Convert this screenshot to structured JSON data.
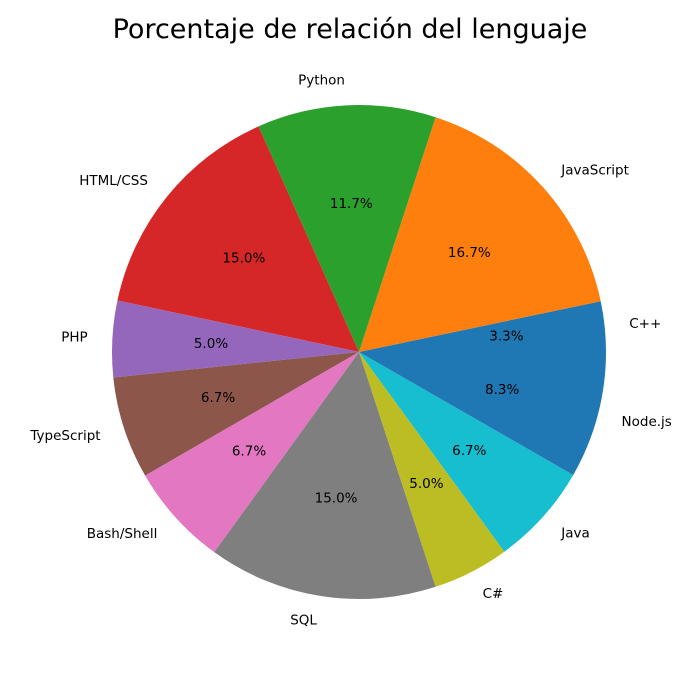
{
  "chart_data": {
    "type": "pie",
    "title": "Porcentaje de relación del lenguaje",
    "start_angle_deg": 0,
    "direction": "counterclockwise",
    "slices": [
      {
        "label": "C++",
        "value": 3.3,
        "pct_label": "3.3%",
        "color": "#1f77b4"
      },
      {
        "label": "JavaScript",
        "value": 16.7,
        "pct_label": "16.7%",
        "color": "#ff7f0e"
      },
      {
        "label": "Python",
        "value": 11.7,
        "pct_label": "11.7%",
        "color": "#2ca02c"
      },
      {
        "label": "HTML/CSS",
        "value": 15.0,
        "pct_label": "15.0%",
        "color": "#d62728"
      },
      {
        "label": "PHP",
        "value": 5.0,
        "pct_label": "5.0%",
        "color": "#9467bd"
      },
      {
        "label": "TypeScript",
        "value": 6.7,
        "pct_label": "6.7%",
        "color": "#8c564b"
      },
      {
        "label": "Bash/Shell",
        "value": 6.7,
        "pct_label": "6.7%",
        "color": "#e377c2"
      },
      {
        "label": "SQL",
        "value": 15.0,
        "pct_label": "15.0%",
        "color": "#7f7f7f"
      },
      {
        "label": "C#",
        "value": 5.0,
        "pct_label": "5.0%",
        "color": "#bcbd22"
      },
      {
        "label": "Java",
        "value": 6.7,
        "pct_label": "6.7%",
        "color": "#17becf"
      },
      {
        "label": "Node.js",
        "value": 8.3,
        "pct_label": "8.3%",
        "color": "#1f77b4"
      }
    ]
  }
}
